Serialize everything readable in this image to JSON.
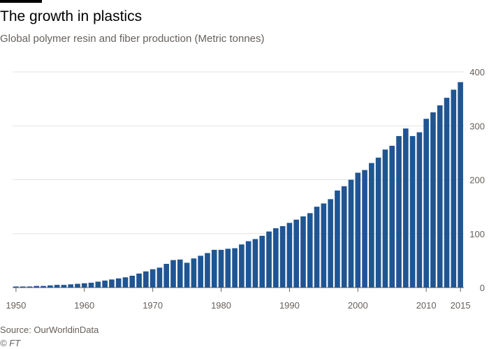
{
  "header": {
    "title": "The growth in plastics",
    "subtitle": "Global polymer resin and fiber production (Metric tonnes)"
  },
  "footer": {
    "source": "Source: OurWorldinData",
    "copyright": "© FT"
  },
  "colors": {
    "bar": "#1f5593",
    "grid": "#e7e2df",
    "axis": "#66605c",
    "text": "#66605c",
    "title": "#000000"
  },
  "chart_data": {
    "type": "bar",
    "title": "The growth in plastics",
    "subtitle": "Global polymer resin and fiber production (Metric tonnes)",
    "xlabel": "",
    "ylabel": "",
    "ylim": [
      0,
      400
    ],
    "y_ticks": [
      0,
      100,
      200,
      300,
      400
    ],
    "y_axis_position": "right",
    "x_ticks": [
      "1950",
      "1960",
      "1970",
      "1980",
      "1990",
      "2000",
      "2010",
      "2015"
    ],
    "grid": true,
    "legend": "none",
    "series": [
      {
        "categories": [
          1950,
          1951,
          1952,
          1953,
          1954,
          1955,
          1956,
          1957,
          1958,
          1959,
          1960,
          1961,
          1962,
          1963,
          1964,
          1965,
          1966,
          1967,
          1968,
          1969,
          1970,
          1971,
          1972,
          1973,
          1974,
          1975,
          1976,
          1977,
          1978,
          1979,
          1980,
          1981,
          1982,
          1983,
          1984,
          1985,
          1986,
          1987,
          1988,
          1989,
          1990,
          1991,
          1992,
          1993,
          1994,
          1995,
          1996,
          1997,
          1998,
          1999,
          2000,
          2001,
          2002,
          2003,
          2004,
          2005,
          2006,
          2007,
          2008,
          2009,
          2010,
          2011,
          2012,
          2013,
          2014,
          2015
        ],
        "values": [
          2,
          2,
          2,
          3,
          3,
          4,
          5,
          5,
          6,
          7,
          8,
          9,
          11,
          13,
          15,
          17,
          19,
          22,
          26,
          30,
          34,
          37,
          44,
          51,
          52,
          46,
          54,
          59,
          64,
          70,
          70,
          72,
          73,
          80,
          86,
          90,
          96,
          104,
          110,
          114,
          120,
          126,
          132,
          138,
          150,
          156,
          164,
          180,
          188,
          200,
          213,
          218,
          231,
          241,
          256,
          263,
          281,
          295,
          281,
          288,
          313,
          325,
          338,
          352,
          367,
          381
        ]
      }
    ]
  }
}
